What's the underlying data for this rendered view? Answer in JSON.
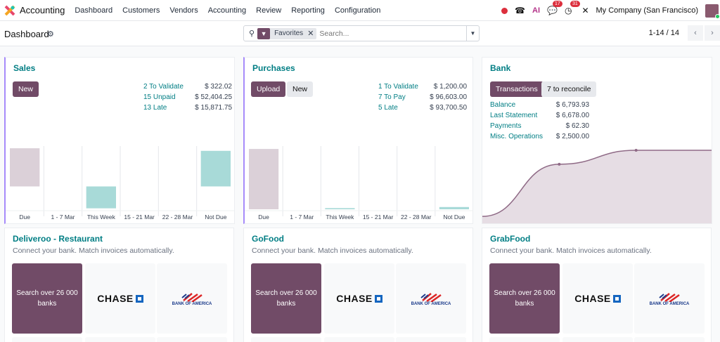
{
  "nav": {
    "app": "Accounting",
    "menu": [
      "Dashboard",
      "Customers",
      "Vendors",
      "Accounting",
      "Review",
      "Reporting",
      "Configuration"
    ],
    "messages_count": "17",
    "activities_count": "31",
    "ai_label": "AI",
    "company": "My Company (San Francisco)"
  },
  "control": {
    "title": "Dashboard",
    "facet": "Favorites",
    "search_placeholder": "Search...",
    "pager": "1-14 / 14"
  },
  "colors": {
    "brand": "#714b67",
    "link": "#017e84",
    "negative_bar": "#a8dad8",
    "due_bar": "#dbd0d8"
  },
  "sales": {
    "title": "Sales",
    "new": "New",
    "stats": [
      {
        "label": "2 To Validate",
        "value": "$ 322.02"
      },
      {
        "label": "15 Unpaid",
        "value": "$ 52,404.25"
      },
      {
        "label": "13 Late",
        "value": "$ 15,871.75"
      }
    ]
  },
  "purchases": {
    "title": "Purchases",
    "upload": "Upload",
    "new": "New",
    "stats": [
      {
        "label": "1 To Validate",
        "value": "$ 1,200.00"
      },
      {
        "label": "7 To Pay",
        "value": "$ 96,603.00"
      },
      {
        "label": "5 Late",
        "value": "$ 93,700.50"
      }
    ]
  },
  "bank": {
    "title": "Bank",
    "transactions": "Transactions",
    "reconcile": "7 to reconcile",
    "stats": [
      {
        "label": "Balance",
        "value": "$ 6,793.93"
      },
      {
        "label": "Last Statement",
        "value": "$ 6,678.00"
      },
      {
        "label": "Payments",
        "value": "$ 62.30"
      },
      {
        "label": "Misc. Operations",
        "value": "$ 2,500.00"
      }
    ]
  },
  "chart_data": [
    {
      "type": "bar",
      "categories": [
        "Due",
        "1 - 7 Mar",
        "This Week",
        "15 - 21 Mar",
        "22 - 28 Mar",
        "Not Due"
      ],
      "values": [
        15871.75,
        0,
        -9100,
        0,
        0,
        14800
      ],
      "ylim": [
        -9500,
        16200
      ]
    },
    {
      "type": "bar",
      "categories": [
        "Due",
        "1 - 7 Mar",
        "This Week",
        "15 - 21 Mar",
        "22 - 28 Mar",
        "Not Due"
      ],
      "values": [
        93700.5,
        0,
        1800,
        0,
        0,
        3500
      ],
      "ylim": [
        0,
        96000
      ]
    },
    {
      "type": "area",
      "values": [
        200,
        5400,
        6793.93,
        6793.93
      ],
      "ylim": [
        0,
        6793.93
      ]
    }
  ],
  "journals": [
    {
      "title": "Deliveroo - Restaurant",
      "subtitle": "Connect your bank. Match invoices automatically.",
      "search_tile": "Search over 26 000 banks",
      "bank1": "CHASE",
      "bank2": "BANK OF AMERICA"
    },
    {
      "title": "GoFood",
      "subtitle": "Connect your bank. Match invoices automatically.",
      "search_tile": "Search over 26 000 banks",
      "bank1": "CHASE",
      "bank2": "BANK OF AMERICA"
    },
    {
      "title": "GrabFood",
      "subtitle": "Connect your bank. Match invoices automatically.",
      "search_tile": "Search over 26 000 banks",
      "bank1": "CHASE",
      "bank2": "BANK OF AMERICA"
    }
  ]
}
